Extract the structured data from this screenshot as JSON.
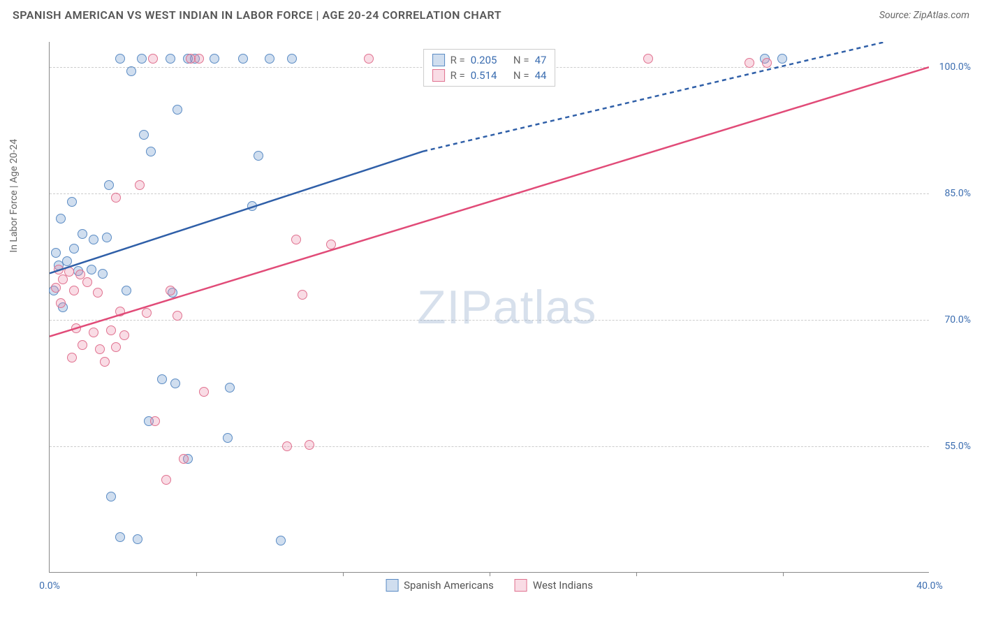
{
  "title": "SPANISH AMERICAN VS WEST INDIAN IN LABOR FORCE | AGE 20-24 CORRELATION CHART",
  "source_label": "Source: ZipAtlas.com",
  "ylabel": "In Labor Force | Age 20-24",
  "watermark_a": "ZIP",
  "watermark_b": "atlas",
  "chart": {
    "type": "scatter",
    "xlim": [
      0,
      40
    ],
    "ylim": [
      40,
      103
    ],
    "x_ticks": [
      0,
      40
    ],
    "x_tick_positions_minor": [
      6.67,
      13.33,
      20,
      26.67,
      33.33
    ],
    "y_ticks": [
      55,
      70,
      85,
      100
    ],
    "x_tick_labels": [
      "0.0%",
      "40.0%"
    ],
    "y_tick_labels": [
      "55.0%",
      "70.0%",
      "85.0%",
      "100.0%"
    ],
    "grid_color": "#cccccc",
    "background_color": "#ffffff",
    "axis_color": "#888888",
    "tick_label_color": "#3b6db0",
    "marker_radius": 7,
    "marker_stroke_width": 1.5,
    "trend_line_width": 2.5,
    "series": [
      {
        "name": "Spanish Americans",
        "fill": "rgba(120,160,210,0.35)",
        "stroke": "#5a8bc4",
        "line_color": "#2f5fa8",
        "r_value": "0.205",
        "n_value": "47",
        "trend": {
          "x1": 0,
          "y1": 75.5,
          "x2_solid": 17,
          "y2_solid": 90,
          "x2": 38,
          "y2": 103
        },
        "points": [
          [
            3.2,
            101
          ],
          [
            4.2,
            101
          ],
          [
            5.5,
            101
          ],
          [
            6.3,
            101
          ],
          [
            6.6,
            101
          ],
          [
            7.5,
            101
          ],
          [
            8.8,
            101
          ],
          [
            10,
            101
          ],
          [
            11,
            101
          ],
          [
            3.7,
            99.5
          ],
          [
            5.8,
            95
          ],
          [
            4.3,
            92
          ],
          [
            4.6,
            90
          ],
          [
            9.5,
            89.5
          ],
          [
            2.7,
            86
          ],
          [
            1.0,
            84
          ],
          [
            9.2,
            83.5
          ],
          [
            0.5,
            82
          ],
          [
            1.5,
            80.2
          ],
          [
            2.0,
            79.5
          ],
          [
            2.6,
            79.8
          ],
          [
            1.1,
            78.5
          ],
          [
            0.3,
            78
          ],
          [
            0.4,
            76.5
          ],
          [
            0.8,
            77
          ],
          [
            1.3,
            75.8
          ],
          [
            1.9,
            76
          ],
          [
            2.4,
            75.5
          ],
          [
            0.2,
            73.5
          ],
          [
            3.5,
            73.5
          ],
          [
            5.6,
            73.2
          ],
          [
            0.6,
            71.5
          ],
          [
            5.1,
            63
          ],
          [
            5.7,
            62.5
          ],
          [
            8.2,
            62
          ],
          [
            4.5,
            58
          ],
          [
            8.1,
            56
          ],
          [
            6.3,
            53.5
          ],
          [
            2.8,
            49
          ],
          [
            4.0,
            44
          ],
          [
            3.2,
            44.2
          ],
          [
            10.5,
            43.8
          ],
          [
            32.5,
            101
          ],
          [
            33.3,
            101
          ]
        ]
      },
      {
        "name": "West Indians",
        "fill": "rgba(235,140,170,0.30)",
        "stroke": "#e0718f",
        "line_color": "#e14b78",
        "r_value": "0.514",
        "n_value": "44",
        "trend": {
          "x1": 0,
          "y1": 68,
          "x2_solid": 40,
          "y2_solid": 100,
          "x2": 40,
          "y2": 100
        },
        "points": [
          [
            4.7,
            101
          ],
          [
            6.4,
            101
          ],
          [
            6.8,
            101
          ],
          [
            14.5,
            101
          ],
          [
            27.2,
            101
          ],
          [
            31.8,
            100.5
          ],
          [
            32.6,
            100.5
          ],
          [
            4.1,
            86
          ],
          [
            3.0,
            84.5
          ],
          [
            11.2,
            79.5
          ],
          [
            12.8,
            79
          ],
          [
            0.4,
            76
          ],
          [
            0.9,
            75.7
          ],
          [
            1.4,
            75.4
          ],
          [
            0.6,
            74.8
          ],
          [
            1.7,
            74.5
          ],
          [
            0.3,
            73.8
          ],
          [
            1.1,
            73.5
          ],
          [
            2.2,
            73.2
          ],
          [
            5.5,
            73.5
          ],
          [
            11.5,
            73
          ],
          [
            0.5,
            72
          ],
          [
            3.2,
            71
          ],
          [
            4.4,
            70.8
          ],
          [
            5.8,
            70.5
          ],
          [
            1.2,
            69
          ],
          [
            2.0,
            68.5
          ],
          [
            2.8,
            68.8
          ],
          [
            3.4,
            68.2
          ],
          [
            1.5,
            67
          ],
          [
            2.3,
            66.5
          ],
          [
            3.0,
            66.8
          ],
          [
            1.0,
            65.5
          ],
          [
            2.5,
            65
          ],
          [
            7.0,
            61.5
          ],
          [
            4.8,
            58
          ],
          [
            6.1,
            53.5
          ],
          [
            10.8,
            55
          ],
          [
            11.8,
            55.2
          ],
          [
            5.3,
            51
          ]
        ]
      }
    ],
    "legend_stats_label_r": "R =",
    "legend_stats_label_n": "N ="
  }
}
